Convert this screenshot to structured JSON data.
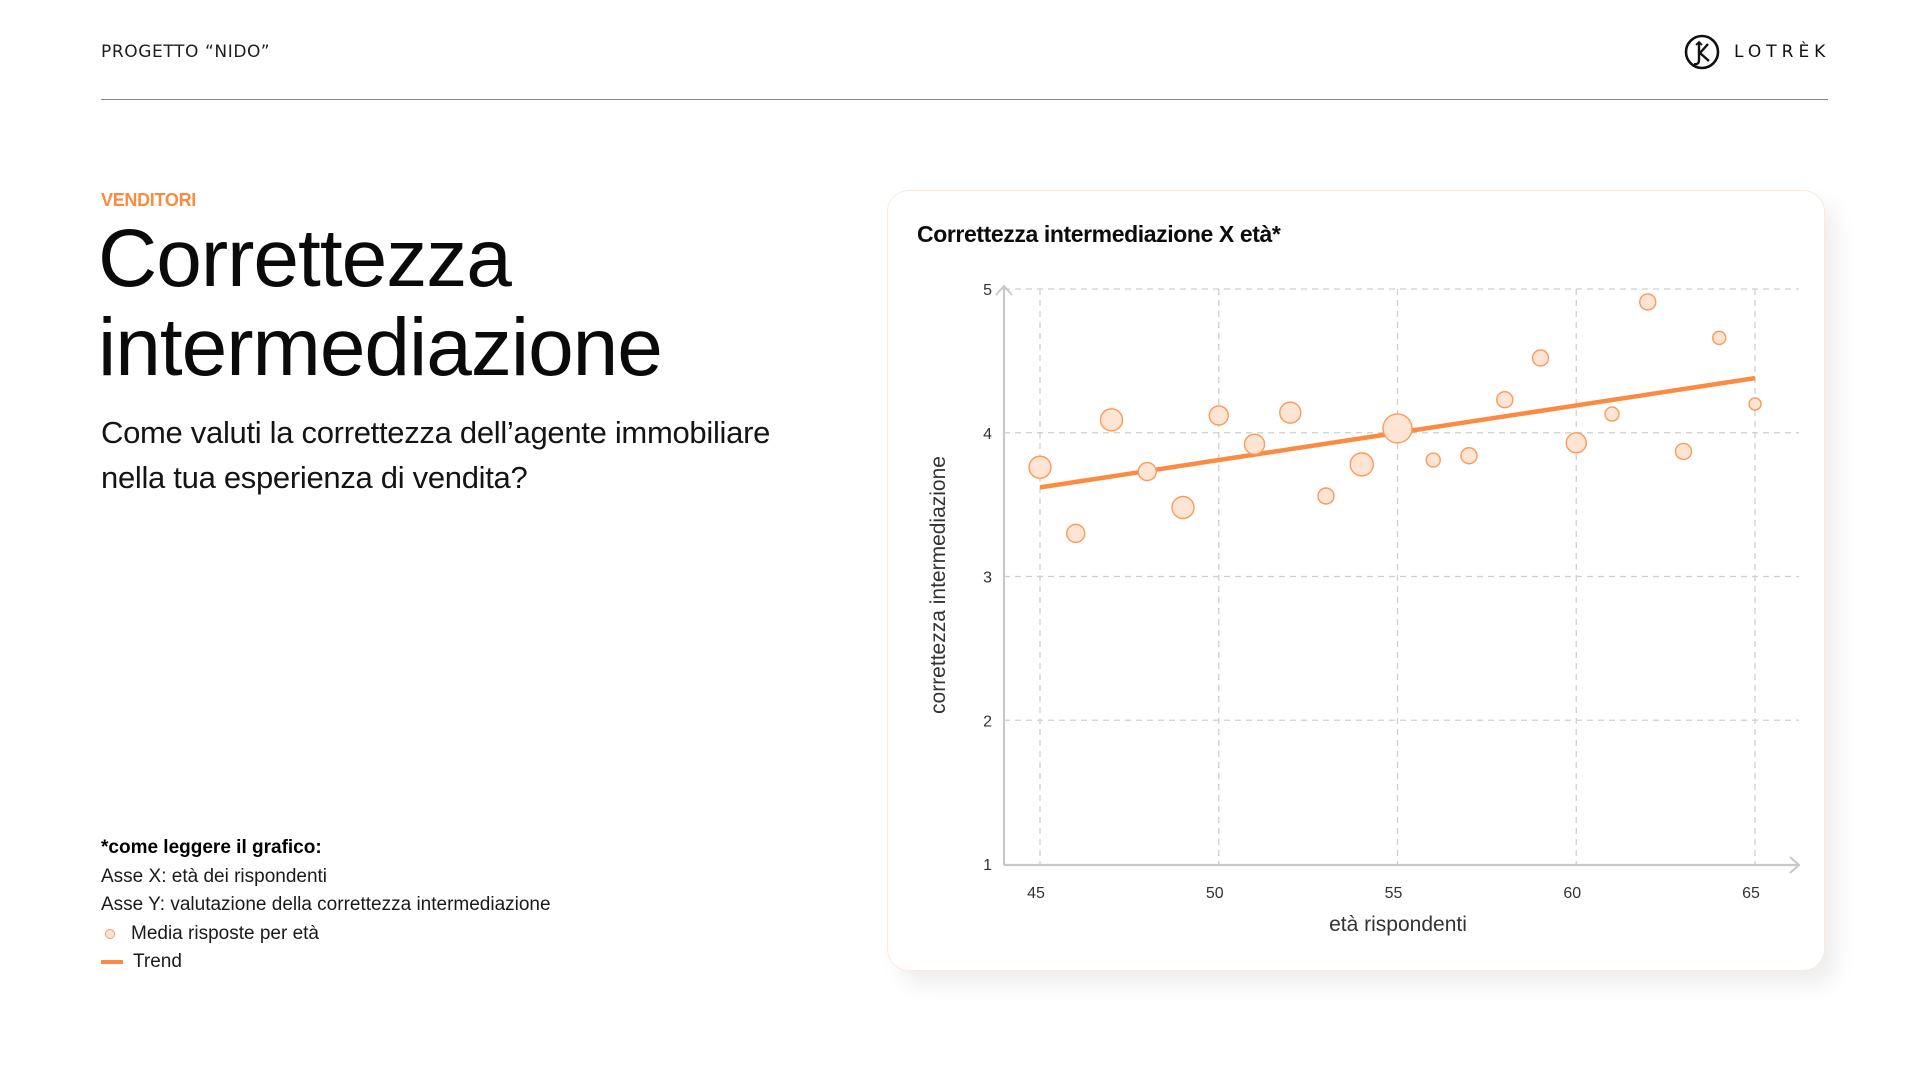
{
  "header": {
    "project_title": "PROGETTO “NIDO”",
    "logo": {
      "icon": "lotrek-k-circle-logo",
      "text": "LOTRÈK"
    }
  },
  "section": {
    "eyebrow": "VENDITORI",
    "title_line1": "Correttezza",
    "title_line2": "intermediazione",
    "subtitle": "Come valuti la correttezza dell’agente immobiliare nella tua esperienza di vendita?"
  },
  "notes": {
    "title": "*come leggere il grafico:",
    "line_x": "Asse X: età dei rispondenti",
    "line_y": "Asse Y: valutazione della correttezza intermediazione",
    "legend": [
      {
        "marker": "circle",
        "label": "Media risposte per età"
      },
      {
        "marker": "line",
        "label": "Trend"
      }
    ]
  },
  "colors": {
    "accent": "#fb8b43",
    "bubble_fill": "#fde4d3",
    "bubble_stroke": "#fb9a5a",
    "grid": "#cfcfcf",
    "axis": "#c8c8c8"
  },
  "chart_data": {
    "type": "scatter",
    "title": "Correttezza intermediazione X età*",
    "xlabel": "età rispondenti",
    "ylabel": "correttezza intermediazione",
    "xlim": [
      44,
      66
    ],
    "ylim": [
      1,
      5
    ],
    "x_ticks": [
      45,
      50,
      55,
      60,
      65
    ],
    "y_ticks": [
      1,
      2,
      3,
      4,
      5
    ],
    "grid": true,
    "legend": [
      "Media risposte per età",
      "Trend"
    ],
    "series": [
      {
        "name": "Media risposte per età",
        "kind": "bubble",
        "points": [
          {
            "x": 45,
            "y": 3.76,
            "size": 11
          },
          {
            "x": 46,
            "y": 3.3,
            "size": 9
          },
          {
            "x": 47,
            "y": 4.09,
            "size": 11
          },
          {
            "x": 48,
            "y": 3.73,
            "size": 9
          },
          {
            "x": 49,
            "y": 3.48,
            "size": 11
          },
          {
            "x": 50,
            "y": 4.12,
            "size": 9.5
          },
          {
            "x": 51,
            "y": 3.92,
            "size": 10
          },
          {
            "x": 52,
            "y": 4.14,
            "size": 10.5
          },
          {
            "x": 53,
            "y": 3.56,
            "size": 8
          },
          {
            "x": 54,
            "y": 3.78,
            "size": 11.5
          },
          {
            "x": 55,
            "y": 4.03,
            "size": 14.5
          },
          {
            "x": 56,
            "y": 3.81,
            "size": 7
          },
          {
            "x": 57,
            "y": 3.84,
            "size": 8
          },
          {
            "x": 58,
            "y": 4.23,
            "size": 8
          },
          {
            "x": 59,
            "y": 4.52,
            "size": 8
          },
          {
            "x": 60,
            "y": 3.93,
            "size": 10
          },
          {
            "x": 61,
            "y": 4.13,
            "size": 7
          },
          {
            "x": 62,
            "y": 4.91,
            "size": 8
          },
          {
            "x": 63,
            "y": 3.87,
            "size": 8
          },
          {
            "x": 64,
            "y": 4.66,
            "size": 6.5
          },
          {
            "x": 65,
            "y": 4.2,
            "size": 6
          }
        ]
      },
      {
        "name": "Trend",
        "kind": "line",
        "points": [
          {
            "x": 45,
            "y": 3.62
          },
          {
            "x": 65,
            "y": 4.38
          }
        ]
      }
    ]
  }
}
